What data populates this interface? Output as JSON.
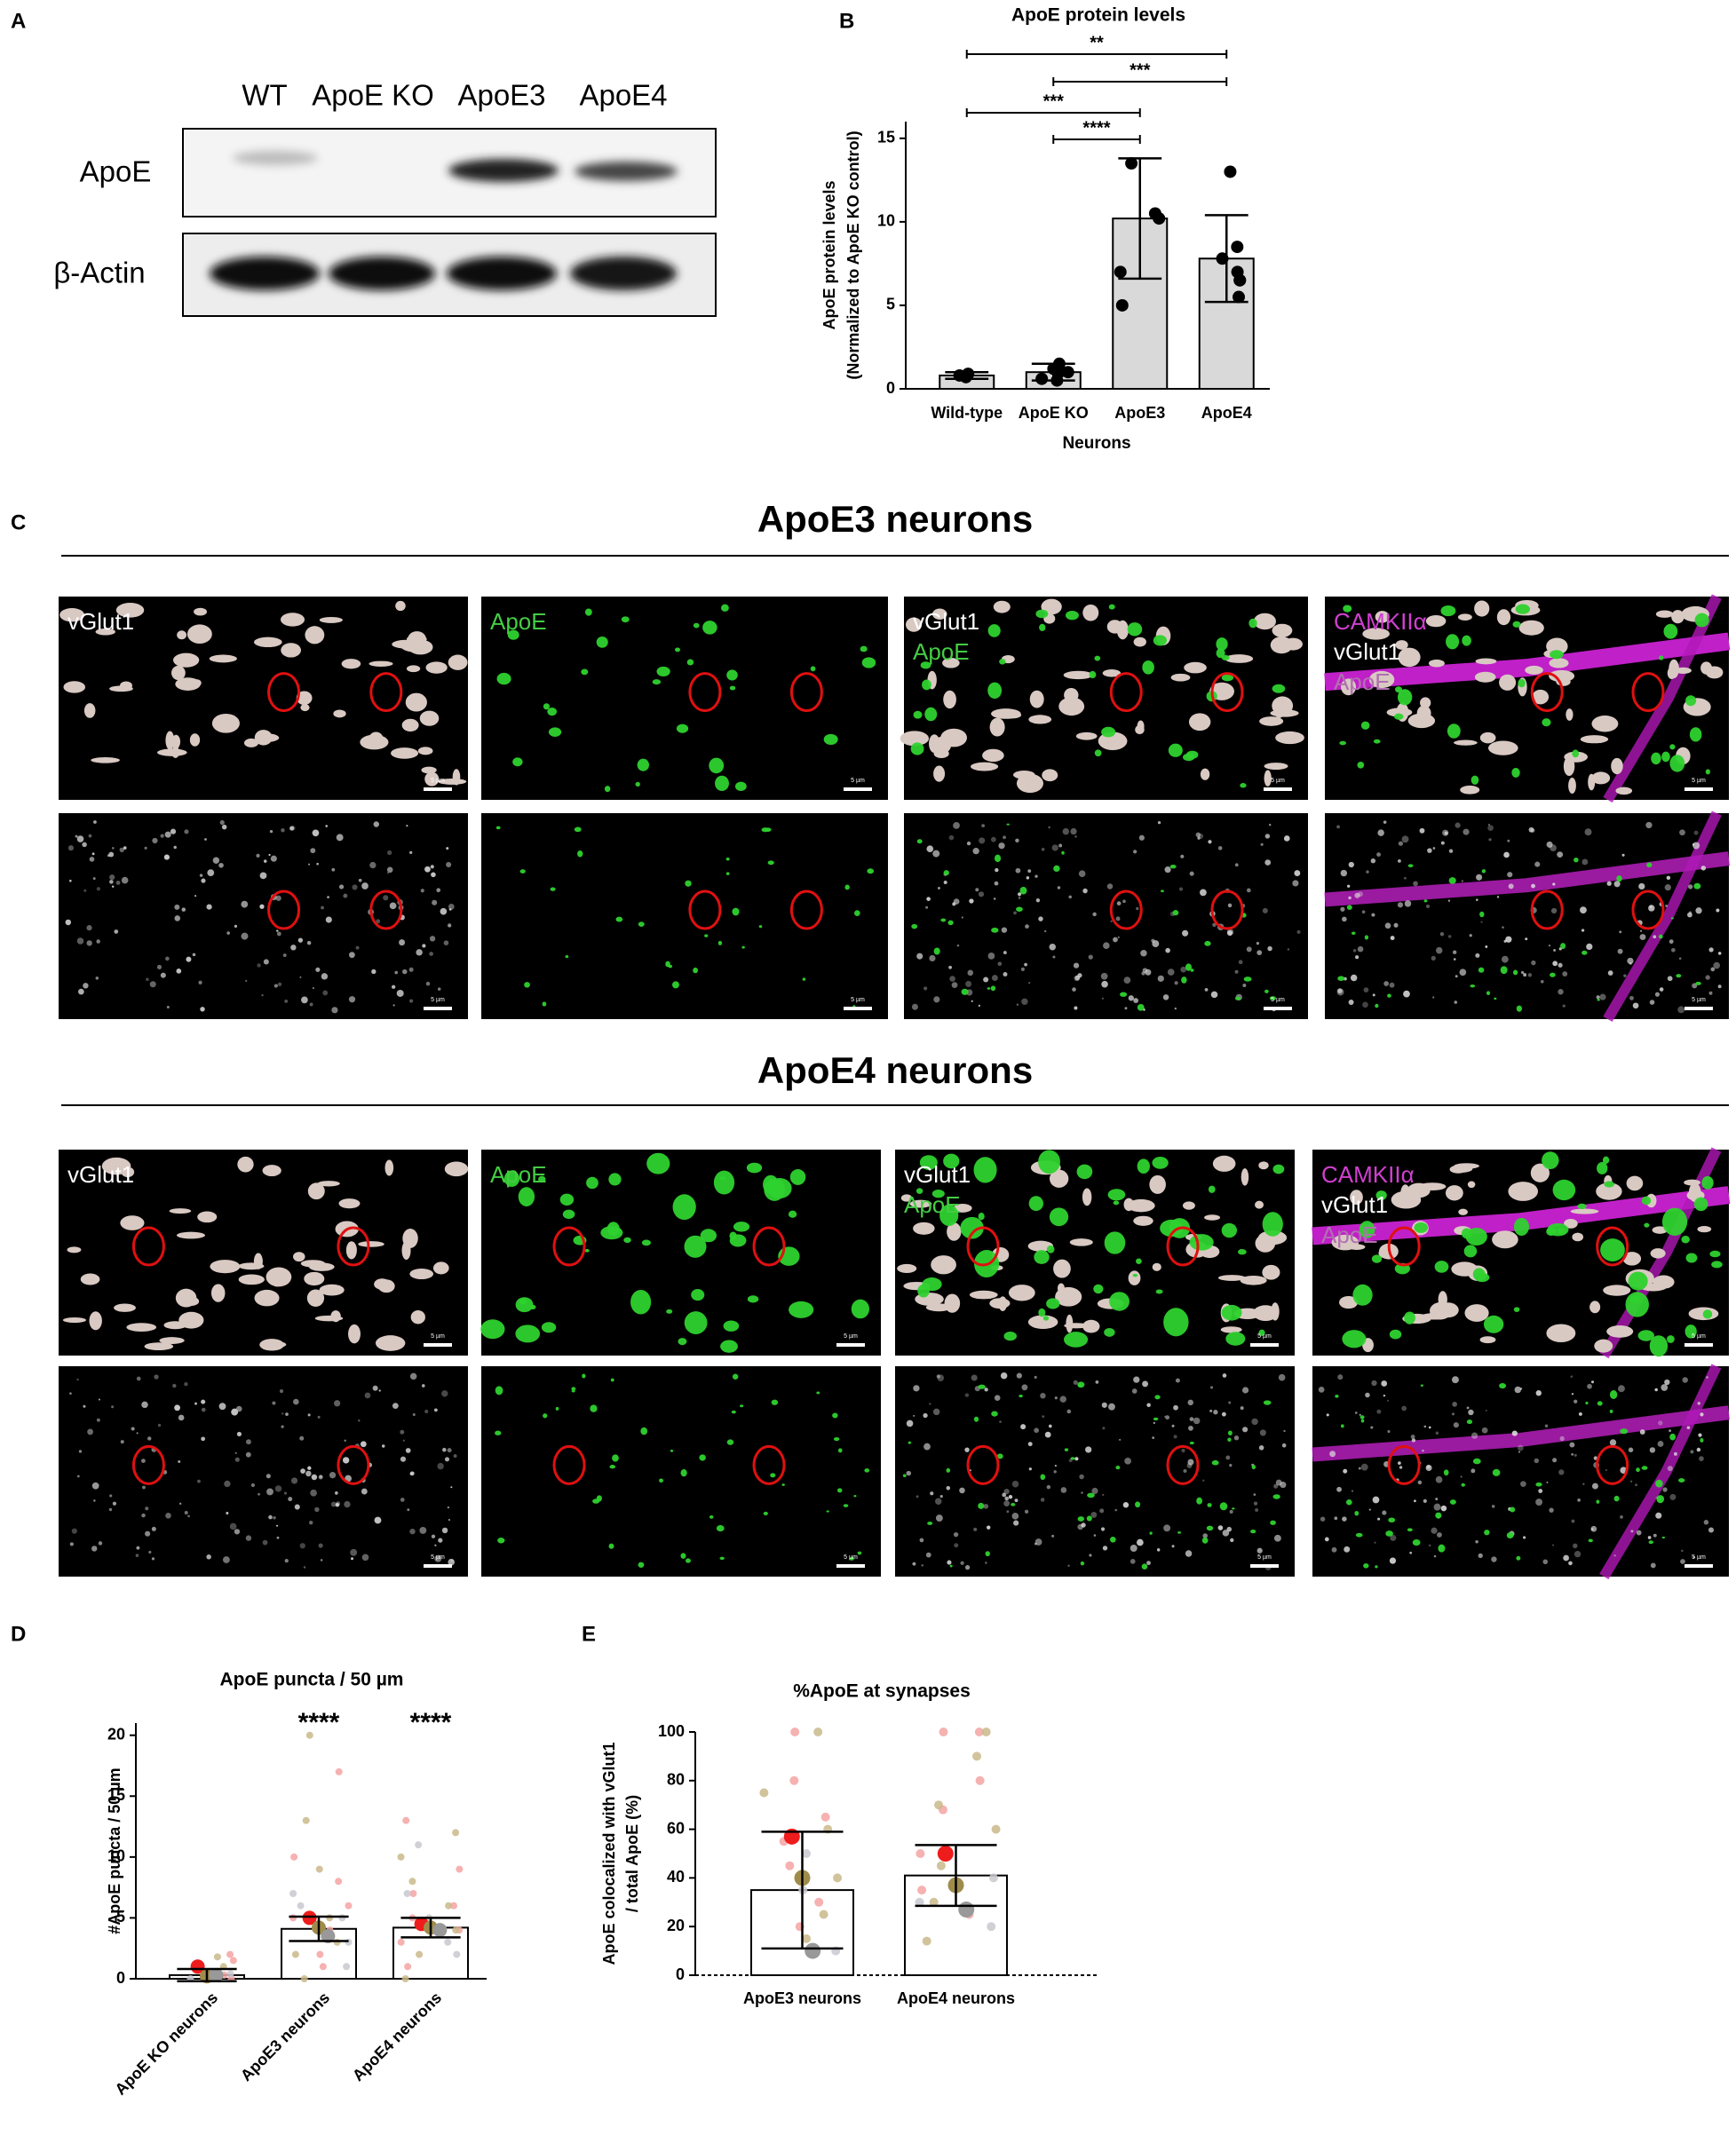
{
  "panel_labels": [
    "A",
    "B",
    "C",
    "D",
    "E"
  ],
  "blot": {
    "lanes": [
      "WT",
      "ApoE  KO",
      "ApoE3",
      "ApoE4"
    ],
    "rows": [
      "ApoE",
      "β-Actin"
    ]
  },
  "microscopy": {
    "scale_bar": "5 µm",
    "groups": [
      {
        "title": "ApoE3 neurons",
        "tile_labels": [
          [
            "vGlut1"
          ],
          [
            "ApoE"
          ],
          [
            "vGlut1",
            "ApoE"
          ],
          [
            "CAMKIIα",
            "vGlut1",
            "ApoE"
          ]
        ]
      },
      {
        "title": "ApoE4 neurons",
        "tile_labels": [
          [
            "vGlut1"
          ],
          [
            "ApoE"
          ],
          [
            "vGlut1",
            "ApoE"
          ],
          [
            "CAMKIIα",
            "vGlut1",
            "ApoE"
          ]
        ]
      }
    ]
  },
  "chart_data": [
    {
      "type": "bar",
      "title": "ApoE protein levels",
      "ylabel": [
        "ApoE protein levels",
        "(Normalized to ApoE KO control)"
      ],
      "xlabel": "Neurons",
      "categories": [
        "Wild-type",
        "ApoE KO",
        "ApoE3",
        "ApoE4"
      ],
      "values": [
        0.8,
        1.0,
        10.2,
        7.8
      ],
      "errors": [
        0.2,
        0.5,
        3.6,
        2.6
      ],
      "color": "#d9d9d9",
      "points": [
        {
          "color": "#000000",
          "values": [
            [
              0.7,
              0.9,
              0.8
            ],
            [
              0.5,
              1.0,
              1.5,
              0.6,
              1.0,
              1.2
            ],
            [
              13.5,
              10.2,
              10.5,
              7.0,
              5.0
            ],
            [
              13.0,
              8.5,
              7.8,
              6.5,
              6.5,
              7.0,
              5.5
            ]
          ]
        }
      ],
      "annotations": [
        {
          "text": "**",
          "from": 0,
          "to": 3
        },
        {
          "text": "***",
          "from": 1,
          "to": 3
        },
        {
          "text": "***",
          "from": 0,
          "to": 2
        },
        {
          "text": "****",
          "from": 1,
          "to": 2
        }
      ],
      "ylim": [
        0,
        16
      ],
      "yticks": [
        0,
        5,
        10,
        15
      ]
    },
    {
      "type": "bar",
      "title": "ApoE puncta / 50 µm",
      "ylabel": [
        "#ApoE puncta / 50 µm"
      ],
      "categories": [
        "ApoE KO neurons",
        "ApoE3 neurons",
        "ApoE4 neurons"
      ],
      "values": [
        0.3,
        4.1,
        4.2
      ],
      "errors": [
        0.5,
        1.0,
        0.8
      ],
      "color": "#ffffff",
      "points": [
        {
          "color": "#f4a3a3",
          "values": [
            [
              0,
              0.5,
              2,
              1.5,
              0.3
            ],
            [
              17,
              10,
              8,
              6,
              4,
              2,
              1,
              5
            ],
            [
              13,
              9,
              7,
              5,
              3,
              1,
              6,
              4
            ]
          ]
        },
        {
          "color": "#c9b98a",
          "values": [
            [
              0,
              1,
              1.8
            ],
            [
              20,
              13,
              9,
              5,
              3,
              2,
              0
            ],
            [
              12,
              10,
              8,
              6,
              4,
              2,
              0
            ]
          ]
        },
        {
          "color": "#c8c8d0",
          "values": [
            [
              0,
              0.4
            ],
            [
              7,
              3,
              6,
              1,
              5
            ],
            [
              11,
              7,
              5,
              3,
              2
            ]
          ]
        }
      ],
      "replicates": [
        {
          "color": "#ee1c1c",
          "values": [
            1.0,
            5.0,
            4.5
          ]
        },
        {
          "color": "#a08c4a",
          "values": [
            0.2,
            4.2,
            4.2
          ]
        },
        {
          "color": "#999999",
          "values": [
            0.3,
            3.5,
            4.0
          ]
        }
      ],
      "annotations": [
        {
          "text": "****",
          "at": 1
        },
        {
          "text": "****",
          "at": 2
        }
      ],
      "ylim": [
        0,
        21
      ],
      "yticks": [
        0,
        5,
        10,
        15,
        20
      ]
    },
    {
      "type": "bar",
      "title": "%ApoE at synapses",
      "ylabel": [
        "ApoE colocalized with vGlut1",
        "/ total ApoE (%)"
      ],
      "categories": [
        "ApoE3 neurons",
        "ApoE4 neurons"
      ],
      "values": [
        35,
        41
      ],
      "errors": [
        24,
        12.5
      ],
      "color": "#ffffff",
      "points": [
        {
          "color": "#f4a3a3",
          "values": [
            [
              100,
              80,
              65,
              55,
              45,
              30,
              20
            ],
            [
              100,
              100,
              80,
              68,
              50,
              35,
              25
            ]
          ]
        },
        {
          "color": "#c9b98a",
          "values": [
            [
              100,
              75,
              60,
              40,
              25,
              15
            ],
            [
              100,
              90,
              70,
              60,
              45,
              30,
              14
            ]
          ]
        },
        {
          "color": "#c8c8d0",
          "values": [
            [
              50,
              35,
              10
            ],
            [
              40,
              30,
              20
            ]
          ]
        }
      ],
      "replicates": [
        {
          "color": "#ee1c1c",
          "values": [
            57,
            50
          ]
        },
        {
          "color": "#a08c4a",
          "values": [
            40,
            37
          ]
        },
        {
          "color": "#999999",
          "values": [
            10,
            27
          ]
        }
      ],
      "ylim": [
        0,
        100
      ],
      "yticks": [
        0,
        20,
        40,
        60,
        80,
        100
      ]
    }
  ]
}
